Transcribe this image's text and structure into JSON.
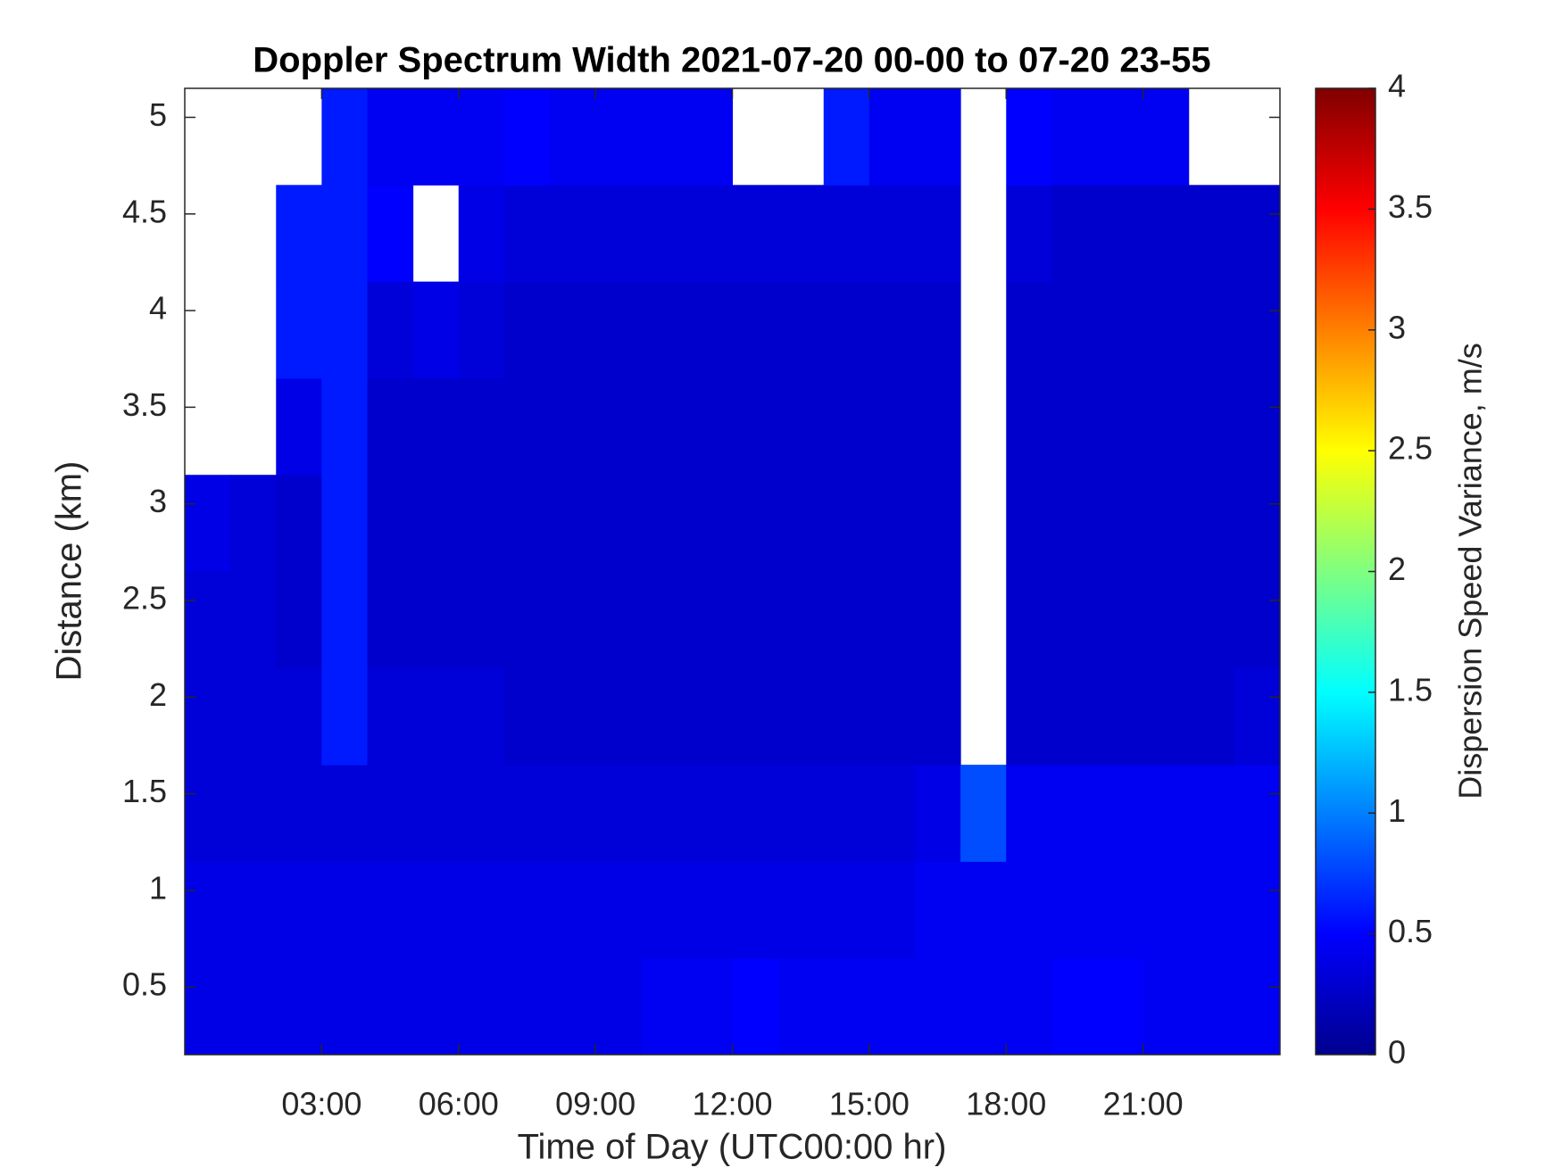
{
  "chart_data": {
    "type": "heatmap",
    "title": "Doppler Spectrum Width 2021-07-20 00-00 to 07-20 23-55",
    "xlabel": "Time of Day (UTC00:00 hr)",
    "ylabel": "Distance (km)",
    "colorbar_label": "Dispersion Speed Variance, m/s",
    "colormap": "jet",
    "x": [
      0.5,
      1.5,
      2.5,
      3.5,
      4.5,
      5.5,
      6.5,
      7.5,
      8.5,
      9.5,
      10.5,
      11.5,
      12.5,
      13.5,
      14.5,
      15.5,
      16.5,
      17.5,
      18.5,
      19.5,
      20.5,
      21.5,
      22.5,
      23.5
    ],
    "y": [
      0.4,
      0.9,
      1.4,
      1.9,
      2.4,
      2.9,
      3.4,
      3.9,
      4.4,
      4.9
    ],
    "values": [
      [
        0.4,
        0.4,
        0.4,
        0.4,
        0.4,
        0.4,
        0.4,
        0.4,
        0.4,
        0.4,
        0.45,
        0.45,
        0.5,
        0.45,
        0.45,
        0.45,
        0.45,
        0.45,
        0.45,
        0.5,
        0.5,
        0.45,
        0.45,
        0.45
      ],
      [
        0.4,
        0.4,
        0.4,
        0.4,
        0.4,
        0.4,
        0.4,
        0.4,
        0.4,
        0.4,
        0.4,
        0.4,
        0.4,
        0.4,
        0.4,
        0.4,
        0.45,
        0.45,
        0.45,
        0.45,
        0.45,
        0.45,
        0.45,
        0.45
      ],
      [
        0.35,
        0.35,
        0.35,
        0.35,
        0.35,
        0.35,
        0.35,
        0.35,
        0.35,
        0.35,
        0.35,
        0.35,
        0.35,
        0.35,
        0.35,
        0.35,
        0.4,
        0.8,
        0.45,
        0.45,
        0.45,
        0.45,
        0.45,
        0.45
      ],
      [
        0.35,
        0.35,
        0.35,
        0.6,
        0.35,
        0.35,
        0.35,
        0.3,
        0.3,
        0.3,
        0.3,
        0.3,
        0.3,
        0.3,
        0.3,
        0.3,
        0.3,
        null,
        0.3,
        0.3,
        0.3,
        0.3,
        0.3,
        0.35
      ],
      [
        0.35,
        0.35,
        0.3,
        0.6,
        0.3,
        0.3,
        0.3,
        0.3,
        0.3,
        0.3,
        0.3,
        0.3,
        0.3,
        0.3,
        0.3,
        0.3,
        0.3,
        null,
        0.3,
        0.3,
        0.3,
        0.3,
        0.3,
        0.3
      ],
      [
        0.4,
        0.35,
        0.3,
        0.6,
        0.3,
        0.3,
        0.3,
        0.3,
        0.3,
        0.3,
        0.3,
        0.3,
        0.3,
        0.3,
        0.3,
        0.3,
        0.3,
        null,
        0.3,
        0.3,
        0.3,
        0.3,
        0.3,
        0.3
      ],
      [
        null,
        null,
        0.4,
        0.6,
        0.3,
        0.3,
        0.3,
        0.3,
        0.3,
        0.3,
        0.3,
        0.3,
        0.3,
        0.3,
        0.3,
        0.3,
        0.3,
        null,
        0.3,
        0.3,
        0.3,
        0.3,
        0.3,
        0.3
      ],
      [
        null,
        null,
        0.6,
        0.6,
        0.35,
        0.4,
        0.35,
        0.3,
        0.3,
        0.3,
        0.3,
        0.3,
        0.3,
        0.3,
        0.3,
        0.3,
        0.3,
        null,
        0.3,
        0.3,
        0.3,
        0.3,
        0.3,
        0.3
      ],
      [
        null,
        null,
        0.6,
        0.6,
        0.5,
        null,
        0.4,
        0.35,
        0.35,
        0.35,
        0.35,
        0.35,
        0.35,
        0.35,
        0.35,
        0.35,
        0.35,
        null,
        0.35,
        0.3,
        0.3,
        0.3,
        0.3,
        0.3
      ],
      [
        null,
        null,
        null,
        0.6,
        0.45,
        0.45,
        0.45,
        0.5,
        0.45,
        0.45,
        0.45,
        0.45,
        null,
        null,
        0.6,
        0.45,
        0.45,
        null,
        0.5,
        0.45,
        0.45,
        0.45,
        null,
        null
      ]
    ],
    "xlim": [
      0,
      24
    ],
    "ylim": [
      0.15,
      5.15
    ],
    "xticks": [
      {
        "value": 3,
        "label": "03:00"
      },
      {
        "value": 6,
        "label": "06:00"
      },
      {
        "value": 9,
        "label": "09:00"
      },
      {
        "value": 12,
        "label": "12:00"
      },
      {
        "value": 15,
        "label": "15:00"
      },
      {
        "value": 18,
        "label": "18:00"
      },
      {
        "value": 21,
        "label": "21:00"
      }
    ],
    "yticks": [
      0.5,
      1,
      1.5,
      2,
      2.5,
      3,
      3.5,
      4,
      4.5,
      5
    ],
    "zlim": [
      0,
      4
    ],
    "zticks": [
      0,
      0.5,
      1,
      1.5,
      2,
      2.5,
      3,
      3.5,
      4
    ]
  }
}
